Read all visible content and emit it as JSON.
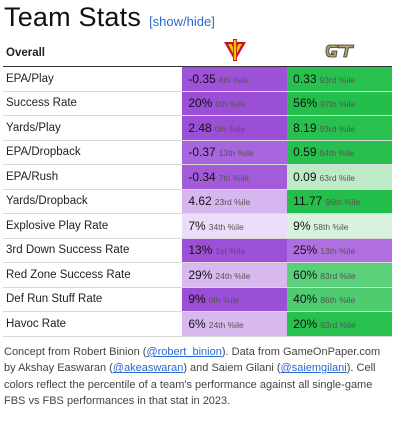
{
  "header": {
    "title": "Team Stats",
    "toggle_label": "[show/hide]"
  },
  "table": {
    "section_label": "Overall",
    "teams": [
      {
        "icon": "vmi-logo-icon",
        "color": "#c8102e"
      },
      {
        "icon": "georgia-tech-logo-icon",
        "color": "#b3a369"
      }
    ],
    "rows": [
      {
        "label": "EPA/Play",
        "cells": [
          {
            "value": "-0.35",
            "pct": "4th %ile",
            "bg": "#9d52d8"
          },
          {
            "value": "0.33",
            "pct": "93rd %ile",
            "bg": "#28c04f"
          }
        ]
      },
      {
        "label": "Success Rate",
        "cells": [
          {
            "value": "20%",
            "pct": "0th %ile",
            "bg": "#9b4fd6"
          },
          {
            "value": "56%",
            "pct": "97th %ile",
            "bg": "#23be4b"
          }
        ]
      },
      {
        "label": "Yards/Play",
        "cells": [
          {
            "value": "2.48",
            "pct": "0th %ile",
            "bg": "#9b4fd6"
          },
          {
            "value": "8.19",
            "pct": "93rd %ile",
            "bg": "#28c04f"
          }
        ]
      },
      {
        "label": "EPA/Dropback",
        "cells": [
          {
            "value": "-0.37",
            "pct": "13th %ile",
            "bg": "#a865dd"
          },
          {
            "value": "0.59",
            "pct": "94th %ile",
            "bg": "#27bf4e"
          }
        ]
      },
      {
        "label": "EPA/Rush",
        "cells": [
          {
            "value": "-0.34",
            "pct": "7th %ile",
            "bg": "#a35bda"
          },
          {
            "value": "0.09",
            "pct": "63rd %ile",
            "bg": "#bfeac8"
          }
        ]
      },
      {
        "label": "Yards/Dropback",
        "cells": [
          {
            "value": "4.62",
            "pct": "23rd %ile",
            "bg": "#d7b6ef"
          },
          {
            "value": "11.77",
            "pct": "96th %ile",
            "bg": "#24be4c"
          }
        ]
      },
      {
        "label": "Explosive Play Rate",
        "cells": [
          {
            "value": "7%",
            "pct": "34th %ile",
            "bg": "#ecdcf7"
          },
          {
            "value": "9%",
            "pct": "58th %ile",
            "bg": "#d9f2df"
          }
        ]
      },
      {
        "label": "3rd Down Success Rate",
        "cells": [
          {
            "value": "13%",
            "pct": "1st %ile",
            "bg": "#9c50d7"
          },
          {
            "value": "25%",
            "pct": "13th %ile",
            "bg": "#b06fe0"
          }
        ]
      },
      {
        "label": "Red Zone Success Rate",
        "cells": [
          {
            "value": "29%",
            "pct": "24th %ile",
            "bg": "#d8b9ef"
          },
          {
            "value": "60%",
            "pct": "83rd %ile",
            "bg": "#5ccf7a"
          }
        ]
      },
      {
        "label": "Def Run Stuff Rate",
        "cells": [
          {
            "value": "9%",
            "pct": "0th %ile",
            "bg": "#9b4fd6"
          },
          {
            "value": "40%",
            "pct": "86th %ile",
            "bg": "#4fcb70"
          }
        ]
      },
      {
        "label": "Havoc Rate",
        "cells": [
          {
            "value": "6%",
            "pct": "24th %ile",
            "bg": "#d8b9ef"
          },
          {
            "value": "20%",
            "pct": "93rd %ile",
            "bg": "#28c04f"
          }
        ]
      }
    ]
  },
  "footer": {
    "p1": "Concept from Robert Binion (",
    "link1": "@robert_binion",
    "p2": "). Data from GameOnPaper.com by Akshay Easwaran (",
    "link2": "@akeaswaran",
    "p3": ") and Saiem Gilani (",
    "link3": "@saiemgilani",
    "p4": "). Cell colors reflect the percentile of a team's performance against all single-game FBS vs FBS performances in that stat in 2023."
  }
}
